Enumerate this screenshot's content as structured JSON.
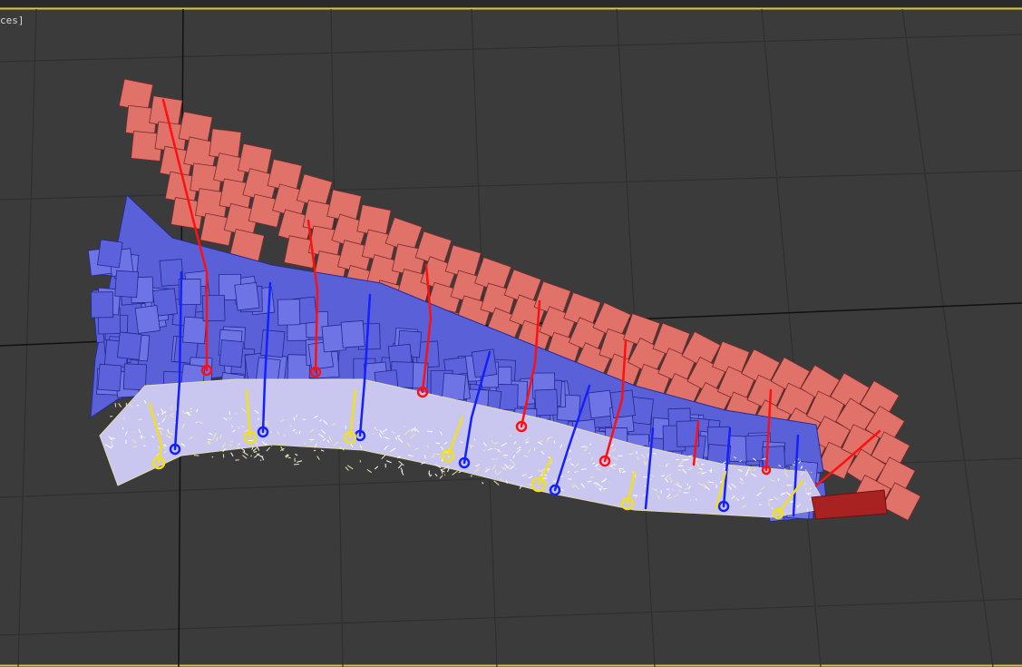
{
  "viewport": {
    "label": "ces]"
  }
}
